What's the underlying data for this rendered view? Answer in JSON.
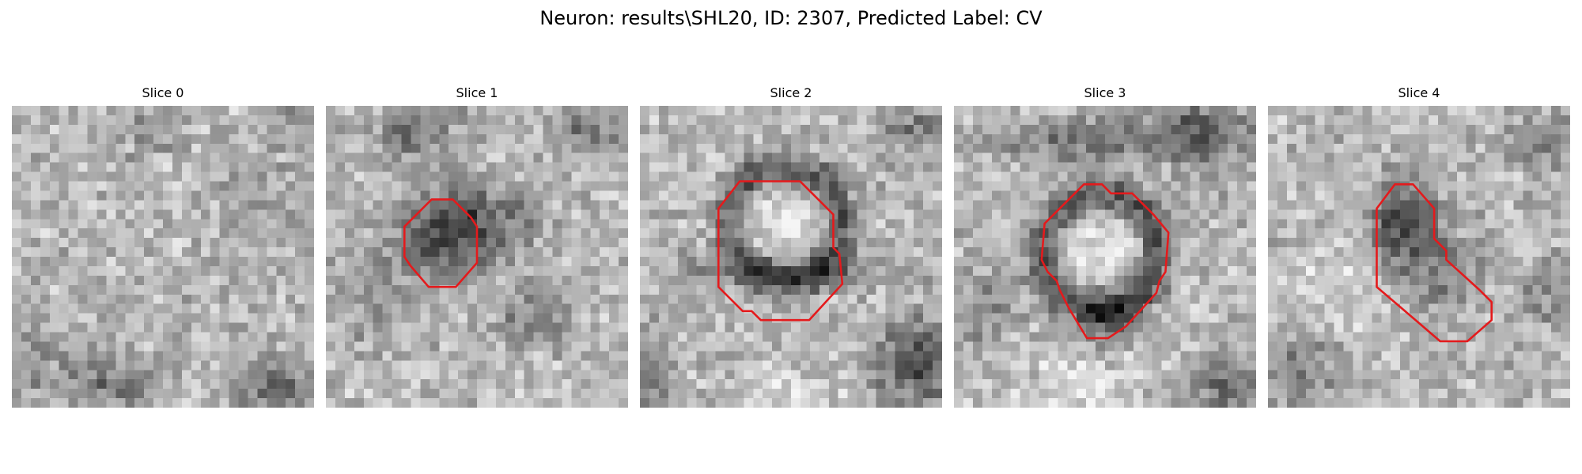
{
  "figure": {
    "title": "Neuron: results\\SHL20, ID: 2307, Predicted Label: CV"
  },
  "slices": [
    {
      "title": "Slice 0",
      "has_contour": false
    },
    {
      "title": "Slice 1",
      "has_contour": true
    },
    {
      "title": "Slice 2",
      "has_contour": true
    },
    {
      "title": "Slice 3",
      "has_contour": true
    },
    {
      "title": "Slice 4",
      "has_contour": true
    }
  ],
  "colors": {
    "contour": "#e41a1c",
    "colormap": "gray"
  }
}
